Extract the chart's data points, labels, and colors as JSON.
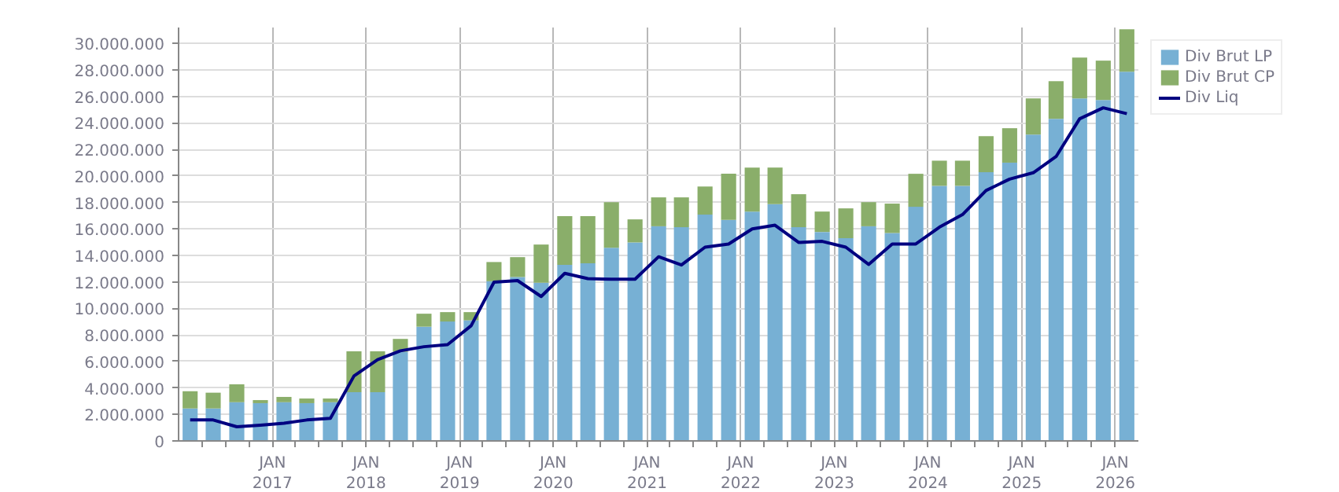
{
  "chart_data": {
    "type": "bar",
    "stacked": true,
    "x": [
      "2016-02-15",
      "2016-05-15",
      "2016-08-15",
      "2016-11-15",
      "2017-02-15",
      "2017-05-15",
      "2017-08-15",
      "2017-11-15",
      "2018-02-15",
      "2018-05-15",
      "2018-08-15",
      "2018-11-15",
      "2019-02-15",
      "2019-05-15",
      "2019-08-15",
      "2019-11-15",
      "2020-02-15",
      "2020-05-15",
      "2020-08-15",
      "2020-11-15",
      "2021-02-15",
      "2021-05-15",
      "2021-08-15",
      "2021-11-15",
      "2022-02-15",
      "2022-05-15",
      "2022-08-15",
      "2022-11-15",
      "2023-02-15",
      "2023-05-15",
      "2023-08-15",
      "2023-11-15",
      "2024-02-15",
      "2024-05-15",
      "2024-08-15",
      "2024-11-15",
      "2025-02-15",
      "2025-05-15",
      "2025-08-15",
      "2025-11-15",
      "2026-02-15"
    ],
    "series": [
      {
        "name": "Div Brut LP",
        "color": "#77b0d4",
        "values": [
          2450000,
          2450000,
          2920000,
          2850000,
          2920000,
          2850000,
          2920000,
          3680000,
          3680000,
          6720000,
          8620000,
          9010000,
          9100000,
          12050000,
          12370000,
          11940000,
          13280000,
          13400000,
          14580000,
          14980000,
          16200000,
          16130000,
          17080000,
          16680000,
          17310000,
          17870000,
          16130000,
          15770000,
          15300000,
          16200000,
          15690000,
          17670000,
          19250000,
          19250000,
          20280000,
          21000000,
          23120000,
          24310000,
          25850000,
          25730000,
          27870000
        ]
      },
      {
        "name": "Div Brut CP",
        "color": "#8aae6a",
        "values": [
          1300000,
          1190000,
          1350000,
          230000,
          400000,
          350000,
          280000,
          3080000,
          3080000,
          980000,
          980000,
          710000,
          620000,
          1450000,
          1500000,
          2880000,
          3680000,
          3560000,
          3440000,
          1740000,
          2180000,
          2250000,
          2120000,
          3480000,
          3320000,
          2760000,
          2490000,
          1540000,
          2250000,
          1820000,
          2220000,
          2490000,
          1900000,
          1900000,
          2720000,
          2600000,
          2730000,
          2840000,
          3080000,
          2970000,
          3200000
        ]
      },
      {
        "name": "Div Liq",
        "type": "line",
        "color": "#000080",
        "values": [
          1580000,
          1580000,
          1070000,
          1190000,
          1340000,
          1580000,
          1700000,
          4900000,
          6130000,
          6800000,
          7110000,
          7270000,
          8700000,
          11980000,
          12100000,
          10900000,
          12650000,
          12250000,
          12200000,
          12200000,
          13900000,
          13280000,
          14620000,
          14860000,
          16000000,
          16280000,
          14980000,
          15060000,
          14620000,
          13320000,
          14860000,
          14860000,
          16130000,
          17080000,
          18900000,
          19760000,
          20240000,
          21460000,
          24310000,
          25140000,
          24700000
        ]
      }
    ],
    "xlim": [
      "2016-01-01",
      "2026-04-01"
    ],
    "xticks": [
      {
        "value": "2016-04-01",
        "label": null
      },
      {
        "value": "2016-07-01",
        "label": null
      },
      {
        "value": "2016-10-01",
        "label": null
      },
      {
        "value": "2017-01-01",
        "label": "JAN\n2017"
      },
      {
        "value": "2017-04-01",
        "label": null
      },
      {
        "value": "2017-07-01",
        "label": null
      },
      {
        "value": "2017-10-01",
        "label": null
      },
      {
        "value": "2018-01-01",
        "label": "JAN\n2018"
      },
      {
        "value": "2018-04-01",
        "label": null
      },
      {
        "value": "2018-07-01",
        "label": null
      },
      {
        "value": "2018-10-01",
        "label": null
      },
      {
        "value": "2019-01-01",
        "label": "JAN\n2019"
      },
      {
        "value": "2019-04-01",
        "label": null
      },
      {
        "value": "2019-07-01",
        "label": null
      },
      {
        "value": "2019-10-01",
        "label": null
      },
      {
        "value": "2020-01-01",
        "label": "JAN\n2020"
      },
      {
        "value": "2020-04-01",
        "label": null
      },
      {
        "value": "2020-07-01",
        "label": null
      },
      {
        "value": "2020-10-01",
        "label": null
      },
      {
        "value": "2021-01-01",
        "label": "JAN\n2021"
      },
      {
        "value": "2021-04-01",
        "label": null
      },
      {
        "value": "2021-07-01",
        "label": null
      },
      {
        "value": "2021-10-01",
        "label": null
      },
      {
        "value": "2022-01-01",
        "label": "JAN\n2022"
      },
      {
        "value": "2022-04-01",
        "label": null
      },
      {
        "value": "2022-07-01",
        "label": null
      },
      {
        "value": "2022-10-01",
        "label": null
      },
      {
        "value": "2023-01-01",
        "label": "JAN\n2023"
      },
      {
        "value": "2023-04-01",
        "label": null
      },
      {
        "value": "2023-07-01",
        "label": null
      },
      {
        "value": "2023-10-01",
        "label": null
      },
      {
        "value": "2024-01-01",
        "label": "JAN\n2024"
      },
      {
        "value": "2024-04-01",
        "label": null
      },
      {
        "value": "2024-07-01",
        "label": null
      },
      {
        "value": "2024-10-01",
        "label": null
      },
      {
        "value": "2025-01-01",
        "label": "JAN\n2025"
      },
      {
        "value": "2025-04-01",
        "label": null
      },
      {
        "value": "2025-07-01",
        "label": null
      },
      {
        "value": "2025-10-01",
        "label": null
      },
      {
        "value": "2026-01-01",
        "label": "JAN\n2026"
      }
    ],
    "ylim": [
      0,
      31200000
    ],
    "yticks": [
      {
        "value": 0,
        "label": "0"
      },
      {
        "value": 2000000,
        "label": "2.000.000"
      },
      {
        "value": 4000000,
        "label": "4.000.000"
      },
      {
        "value": 6000000,
        "label": "6.000.000"
      },
      {
        "value": 8000000,
        "label": "8.000.000"
      },
      {
        "value": 10000000,
        "label": "10.000.000"
      },
      {
        "value": 12000000,
        "label": "12.000.000"
      },
      {
        "value": 14000000,
        "label": "14.000.000"
      },
      {
        "value": 16000000,
        "label": "16.000.000"
      },
      {
        "value": 18000000,
        "label": "18.000.000"
      },
      {
        "value": 20000000,
        "label": "20.000.000"
      },
      {
        "value": 22000000,
        "label": "22.000.000"
      },
      {
        "value": 24000000,
        "label": "24.000.000"
      },
      {
        "value": 26000000,
        "label": "26.000.000"
      },
      {
        "value": 28000000,
        "label": "28.000.000"
      },
      {
        "value": 30000000,
        "label": "30.000.000"
      }
    ],
    "grid": true,
    "legend": "top right",
    "marker": "none",
    "line_style": "solid"
  }
}
